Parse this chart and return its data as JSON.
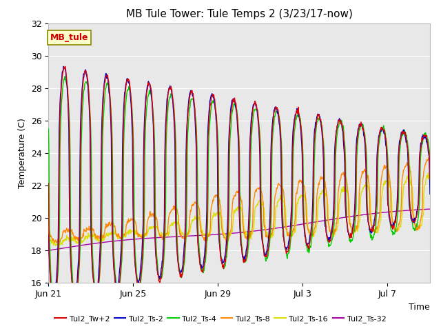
{
  "title": "MB Tule Tower: Tule Temps 2 (3/23/17-now)",
  "xlabel": "Time",
  "ylabel": "Temperature (C)",
  "ylim": [
    16,
    32
  ],
  "yticks": [
    16,
    18,
    20,
    22,
    24,
    26,
    28,
    30,
    32
  ],
  "bg_color": "#e8e8e8",
  "fig_bg": "#ffffff",
  "series_colors": {
    "Tul2_Tw+2": "#dd0000",
    "Tul2_Ts-2": "#0000cc",
    "Tul2_Ts-4": "#00cc00",
    "Tul2_Ts-8": "#ff8800",
    "Tul2_Ts-16": "#dddd00",
    "Tul2_Ts-32": "#aa00aa"
  },
  "xtick_labels": [
    "Jun 21",
    "Jun 25",
    "Jun 29",
    "Jul 3",
    "Jul 7"
  ],
  "xtick_positions": [
    0,
    4,
    8,
    12,
    16
  ],
  "xlim": [
    0,
    18
  ],
  "annotation_text": "MB_tule",
  "annotation_color": "#cc0000",
  "annotation_bg": "#ffffcc",
  "annotation_border": "#888800",
  "lw": 1.0
}
